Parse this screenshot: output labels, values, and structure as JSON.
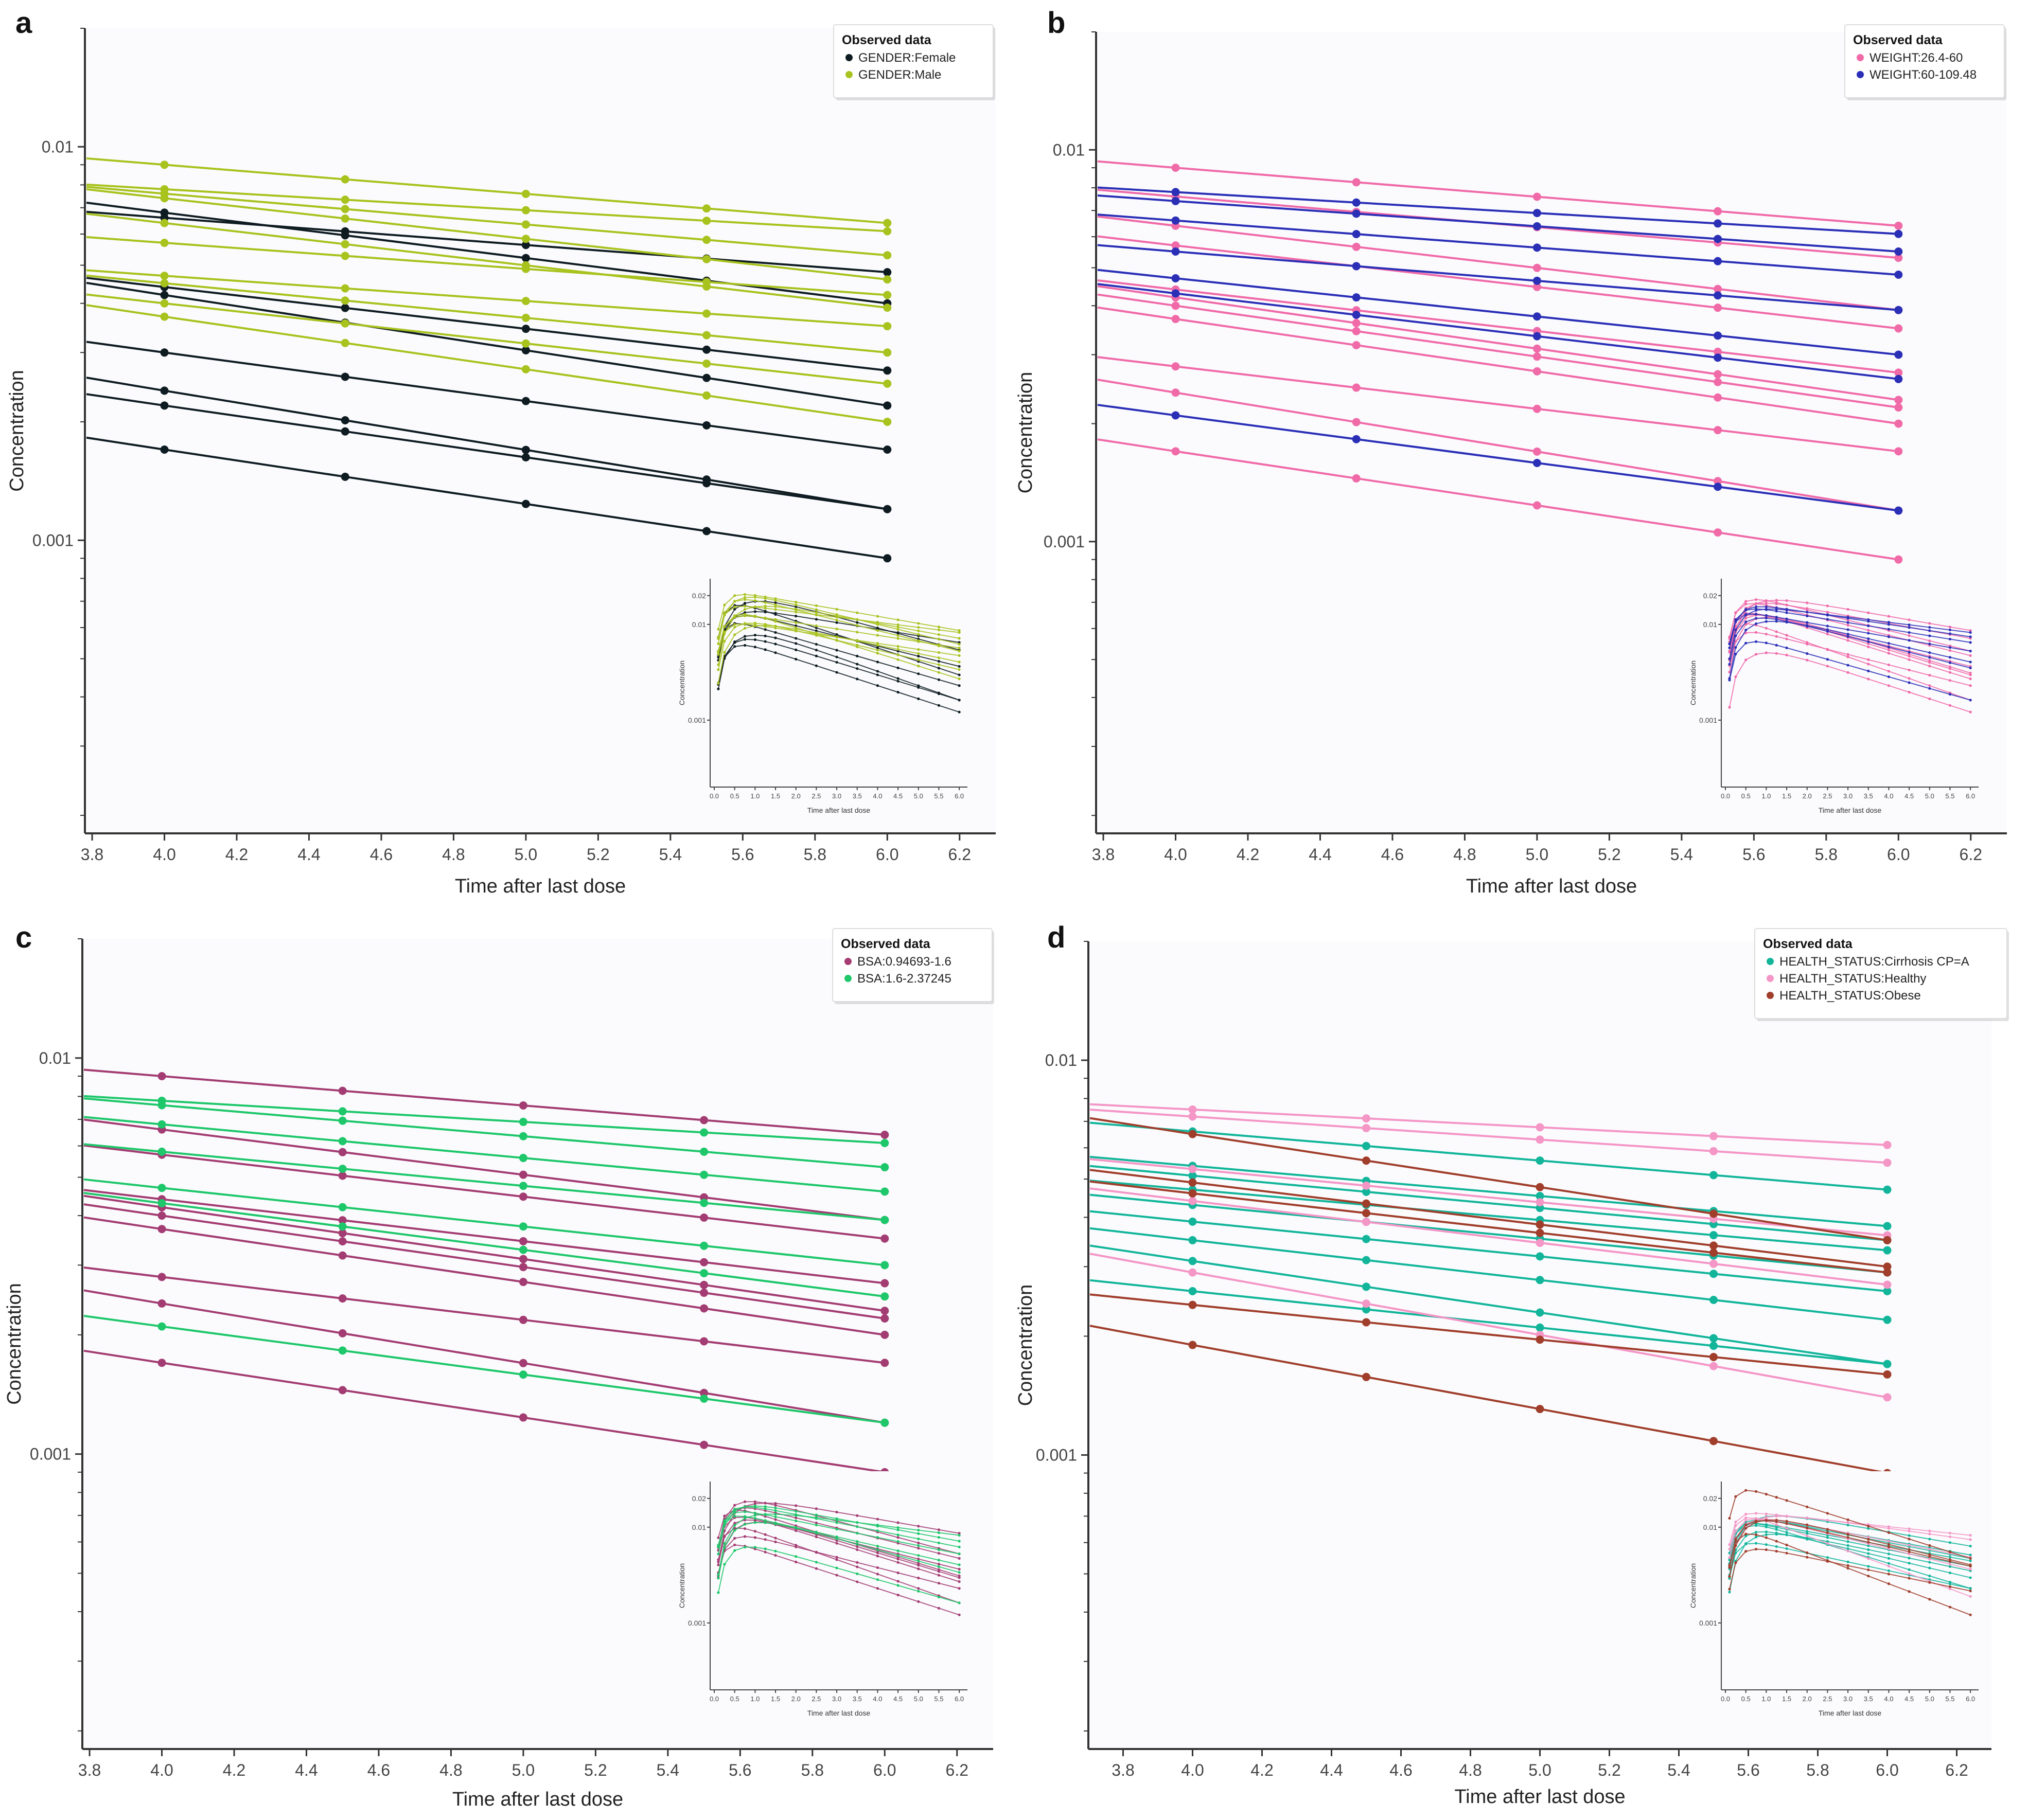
{
  "chart_data": [
    {
      "type": "line",
      "panel_label": "a",
      "title": "",
      "xlabel": "Time after last dose",
      "ylabel": "Concentration",
      "scale": "log",
      "xlim": [
        3.78,
        6.3
      ],
      "ylim": [
        0.00018,
        0.02
      ],
      "x_ticks": [
        "3.8",
        "4.0",
        "4.2",
        "4.4",
        "4.6",
        "4.8",
        "5.0",
        "5.2",
        "5.4",
        "5.6",
        "5.8",
        "6.0",
        "6.2"
      ],
      "y_tick_labels": [
        "0.01",
        "0.001"
      ],
      "x": [
        4.0,
        4.5,
        5.0,
        5.5,
        6.0
      ],
      "legend": {
        "title": "Observed data",
        "position": "top-right",
        "entries": [
          {
            "name": "GENDER:Female",
            "color": "#0e1c22"
          },
          {
            "name": "GENDER:Male",
            "color": "#a8c21e"
          }
        ]
      },
      "series": [
        {
          "group": 0,
          "start": 0.0068,
          "end": 0.004
        },
        {
          "group": 0,
          "start": 0.0066,
          "end": 0.0048
        },
        {
          "group": 0,
          "start": 0.0044,
          "end": 0.0027
        },
        {
          "group": 0,
          "start": 0.0042,
          "end": 0.0022
        },
        {
          "group": 0,
          "start": 0.003,
          "end": 0.0017
        },
        {
          "group": 0,
          "start": 0.0024,
          "end": 0.0012
        },
        {
          "group": 0,
          "start": 0.0022,
          "end": 0.0012
        },
        {
          "group": 0,
          "start": 0.0017,
          "end": 0.0009
        },
        {
          "group": 1,
          "start": 0.009,
          "end": 0.0064
        },
        {
          "group": 1,
          "start": 0.0078,
          "end": 0.0061
        },
        {
          "group": 1,
          "start": 0.0076,
          "end": 0.0053
        },
        {
          "group": 1,
          "start": 0.0074,
          "end": 0.0046
        },
        {
          "group": 1,
          "start": 0.0064,
          "end": 0.0039
        },
        {
          "group": 1,
          "start": 0.0057,
          "end": 0.0042
        },
        {
          "group": 1,
          "start": 0.0047,
          "end": 0.0035
        },
        {
          "group": 1,
          "start": 0.0045,
          "end": 0.003
        },
        {
          "group": 1,
          "start": 0.004,
          "end": 0.0025
        },
        {
          "group": 1,
          "start": 0.0037,
          "end": 0.002
        }
      ],
      "inset": {
        "xlabel": "Time after last dose",
        "ylabel": "Concentration",
        "x_ticks": [
          "0.0",
          "0.5",
          "1.0",
          "1.5",
          "2.0",
          "2.5",
          "3.0",
          "3.5",
          "4.0",
          "4.5",
          "5.0",
          "5.5",
          "6.0"
        ],
        "y_tick_labels": [
          "0.02",
          "0.01",
          "0.001"
        ]
      }
    },
    {
      "type": "line",
      "panel_label": "b",
      "title": "",
      "xlabel": "Time after last dose",
      "ylabel": "Concentration",
      "scale": "log",
      "xlim": [
        3.78,
        6.3
      ],
      "ylim": [
        0.00018,
        0.02
      ],
      "x_ticks": [
        "3.8",
        "4.0",
        "4.2",
        "4.4",
        "4.6",
        "4.8",
        "5.0",
        "5.2",
        "5.4",
        "5.6",
        "5.8",
        "6.0",
        "6.2"
      ],
      "y_tick_labels": [
        "0.01",
        "0.001"
      ],
      "x": [
        4.0,
        4.5,
        5.0,
        5.5,
        6.0
      ],
      "legend": {
        "title": "Observed data",
        "position": "top-right",
        "entries": [
          {
            "name": "WEIGHT:26.4-60",
            "color": "#f06aa8"
          },
          {
            "name": "WEIGHT:60-109.48",
            "color": "#2a2fb6"
          }
        ]
      },
      "series": [
        {
          "group": 0,
          "start": 0.009,
          "end": 0.0064
        },
        {
          "group": 0,
          "start": 0.0076,
          "end": 0.0053
        },
        {
          "group": 0,
          "start": 0.0064,
          "end": 0.0039
        },
        {
          "group": 0,
          "start": 0.0057,
          "end": 0.0035
        },
        {
          "group": 0,
          "start": 0.0044,
          "end": 0.0027
        },
        {
          "group": 0,
          "start": 0.0042,
          "end": 0.0023
        },
        {
          "group": 0,
          "start": 0.004,
          "end": 0.0022
        },
        {
          "group": 0,
          "start": 0.0037,
          "end": 0.002
        },
        {
          "group": 0,
          "start": 0.0028,
          "end": 0.0017
        },
        {
          "group": 0,
          "start": 0.0024,
          "end": 0.0012
        },
        {
          "group": 0,
          "start": 0.0017,
          "end": 0.0009
        },
        {
          "group": 1,
          "start": 0.0078,
          "end": 0.0061
        },
        {
          "group": 1,
          "start": 0.0074,
          "end": 0.0055
        },
        {
          "group": 1,
          "start": 0.0066,
          "end": 0.0048
        },
        {
          "group": 1,
          "start": 0.0055,
          "end": 0.0039
        },
        {
          "group": 1,
          "start": 0.0047,
          "end": 0.003
        },
        {
          "group": 1,
          "start": 0.0043,
          "end": 0.0026
        },
        {
          "group": 1,
          "start": 0.0021,
          "end": 0.0012
        }
      ],
      "inset": {
        "xlabel": "Time after last dose",
        "ylabel": "Concentration",
        "x_ticks": [
          "0.0",
          "0.5",
          "1.0",
          "1.5",
          "2.0",
          "2.5",
          "3.0",
          "3.5",
          "4.0",
          "4.5",
          "5.0",
          "5.5",
          "6.0"
        ],
        "y_tick_labels": [
          "0.02",
          "0.01",
          "0.001"
        ]
      }
    },
    {
      "type": "line",
      "panel_label": "c",
      "title": "",
      "xlabel": "Time after last dose",
      "ylabel": "Concentration",
      "scale": "log",
      "xlim": [
        3.78,
        6.3
      ],
      "ylim": [
        0.00018,
        0.02
      ],
      "x_ticks": [
        "3.8",
        "4.0",
        "4.2",
        "4.4",
        "4.6",
        "4.8",
        "5.0",
        "5.2",
        "5.4",
        "5.6",
        "5.8",
        "6.0",
        "6.2"
      ],
      "y_tick_labels": [
        "0.01",
        "0.001"
      ],
      "x": [
        4.0,
        4.5,
        5.0,
        5.5,
        6.0
      ],
      "legend": {
        "title": "Observed data",
        "position": "top-right",
        "entries": [
          {
            "name": "BSA:0.94693-1.6",
            "color": "#a33c72"
          },
          {
            "name": "BSA:1.6-2.37245",
            "color": "#1ec76a"
          }
        ]
      },
      "series": [
        {
          "group": 0,
          "start": 0.009,
          "end": 0.0064
        },
        {
          "group": 0,
          "start": 0.0066,
          "end": 0.0039
        },
        {
          "group": 0,
          "start": 0.0057,
          "end": 0.0035
        },
        {
          "group": 0,
          "start": 0.0044,
          "end": 0.0027
        },
        {
          "group": 0,
          "start": 0.0042,
          "end": 0.0023
        },
        {
          "group": 0,
          "start": 0.004,
          "end": 0.0022
        },
        {
          "group": 0,
          "start": 0.0037,
          "end": 0.002
        },
        {
          "group": 0,
          "start": 0.0028,
          "end": 0.0017
        },
        {
          "group": 0,
          "start": 0.0024,
          "end": 0.0012
        },
        {
          "group": 0,
          "start": 0.0017,
          "end": 0.0009
        },
        {
          "group": 1,
          "start": 0.0078,
          "end": 0.0061
        },
        {
          "group": 1,
          "start": 0.0076,
          "end": 0.0053
        },
        {
          "group": 1,
          "start": 0.0068,
          "end": 0.0046
        },
        {
          "group": 1,
          "start": 0.0058,
          "end": 0.0039
        },
        {
          "group": 1,
          "start": 0.0047,
          "end": 0.003
        },
        {
          "group": 1,
          "start": 0.0043,
          "end": 0.0025
        },
        {
          "group": 1,
          "start": 0.0021,
          "end": 0.0012
        }
      ],
      "inset": {
        "xlabel": "Time after last dose",
        "ylabel": "Concentration",
        "x_ticks": [
          "0.0",
          "0.5",
          "1.0",
          "1.5",
          "2.0",
          "2.5",
          "3.0",
          "3.5",
          "4.0",
          "4.5",
          "5.0",
          "5.5",
          "6.0"
        ],
        "y_tick_labels": [
          "0.02",
          "0.01",
          "0.001"
        ]
      }
    },
    {
      "type": "line",
      "panel_label": "d",
      "title": "",
      "xlabel": "Time after last dose",
      "ylabel": "Concentration",
      "scale": "log",
      "xlim": [
        3.7,
        6.3
      ],
      "ylim": [
        0.00018,
        0.02
      ],
      "x_ticks": [
        "3.8",
        "4.0",
        "4.2",
        "4.4",
        "4.6",
        "4.8",
        "5.0",
        "5.2",
        "5.4",
        "5.6",
        "5.8",
        "6.0",
        "6.2"
      ],
      "y_tick_labels": [
        "0.01",
        "0.001"
      ],
      "x": [
        4.0,
        4.5,
        5.0,
        5.5,
        6.0
      ],
      "legend": {
        "title": "Observed data",
        "position": "top-right",
        "entries": [
          {
            "name": "HEALTH_STATUS:Cirrhosis CP=A",
            "color": "#12b59a"
          },
          {
            "name": "HEALTH_STATUS:Healthy",
            "color": "#f496c6"
          },
          {
            "name": "HEALTH_STATUS:Obese",
            "color": "#a03e2b"
          }
        ]
      },
      "series": [
        {
          "group": 0,
          "start": 0.0066,
          "end": 0.0047
        },
        {
          "group": 0,
          "start": 0.0054,
          "end": 0.0038
        },
        {
          "group": 0,
          "start": 0.0051,
          "end": 0.0035
        },
        {
          "group": 0,
          "start": 0.0047,
          "end": 0.0033
        },
        {
          "group": 0,
          "start": 0.0043,
          "end": 0.0029
        },
        {
          "group": 0,
          "start": 0.0039,
          "end": 0.0026
        },
        {
          "group": 0,
          "start": 0.0035,
          "end": 0.0022
        },
        {
          "group": 0,
          "start": 0.0031,
          "end": 0.0017
        },
        {
          "group": 0,
          "start": 0.0026,
          "end": 0.0017
        },
        {
          "group": 1,
          "start": 0.0075,
          "end": 0.0061
        },
        {
          "group": 1,
          "start": 0.0072,
          "end": 0.0055
        },
        {
          "group": 1,
          "start": 0.0053,
          "end": 0.0036
        },
        {
          "group": 1,
          "start": 0.0044,
          "end": 0.0027
        },
        {
          "group": 1,
          "start": 0.0029,
          "end": 0.0014
        },
        {
          "group": 2,
          "start": 0.0065,
          "end": 0.0035
        },
        {
          "group": 2,
          "start": 0.0049,
          "end": 0.003
        },
        {
          "group": 2,
          "start": 0.0046,
          "end": 0.0029
        },
        {
          "group": 2,
          "start": 0.0024,
          "end": 0.0016
        },
        {
          "group": 2,
          "start": 0.0019,
          "end": 0.0009
        }
      ],
      "inset": {
        "xlabel": "Time after last dose",
        "ylabel": "Concentration",
        "x_ticks": [
          "0.0",
          "0.5",
          "1.0",
          "1.5",
          "2.0",
          "2.5",
          "3.0",
          "3.5",
          "4.0",
          "4.5",
          "5.0",
          "5.5",
          "6.0"
        ],
        "y_tick_labels": [
          "0.02",
          "0.01",
          "0.001"
        ]
      }
    }
  ]
}
